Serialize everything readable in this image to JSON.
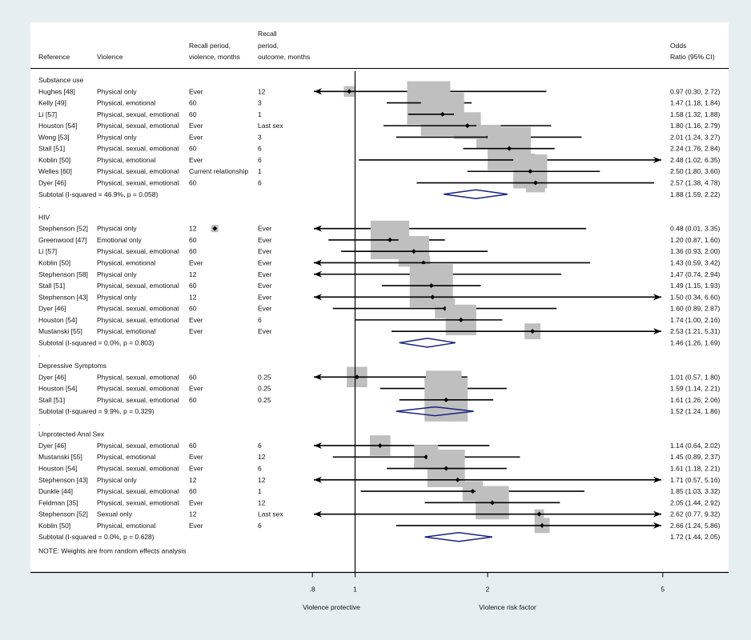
{
  "headers": {
    "reference": "Reference",
    "violence": "Violence",
    "recall_violence": [
      "Recall period,",
      "violence, months"
    ],
    "recall_outcome": [
      "Recall",
      "period,",
      "outcome, months"
    ],
    "odds": [
      "Odds",
      "Ratio (95% CI)"
    ]
  },
  "note": "NOTE: Weights are from random effects analysis",
  "x_axis": {
    "ticks": [
      ".8",
      "1",
      "2",
      "5"
    ]
  },
  "axis_labels": {
    "left": "Violence protective",
    "right": "Violence risk factor"
  },
  "chart_data": {
    "type": "forest",
    "x_scale": "log",
    "xlim": [
      0.8,
      5
    ],
    "reference_line": 1,
    "groups": [
      {
        "name": "Substance use",
        "studies": [
          {
            "ref": "Hughes [48]",
            "violence": "Physical only",
            "recall_violence": "Ever",
            "recall_outcome": "12",
            "or": 0.97,
            "lo": 0.3,
            "hi": 2.72,
            "ci_text": "0.97 (0.30, 2.72)"
          },
          {
            "ref": "Kelly [49]",
            "violence": "Physical, emotional",
            "recall_violence": "60",
            "recall_outcome": "3",
            "or": 1.47,
            "lo": 1.18,
            "hi": 1.84,
            "ci_text": "1.47 (1.18, 1.84)"
          },
          {
            "ref": "Li [57]",
            "violence": "Physical, sexual, emotional",
            "recall_violence": "60",
            "recall_outcome": "1",
            "or": 1.58,
            "lo": 1.32,
            "hi": 1.88,
            "ci_text": "1.58 (1.32, 1.88)"
          },
          {
            "ref": "Houston [54]",
            "violence": "Physical, sexual, emotional",
            "recall_violence": "Ever",
            "recall_outcome": "Last sex",
            "or": 1.8,
            "lo": 1.16,
            "hi": 2.79,
            "ci_text": "1.80 (1.16, 2.79)"
          },
          {
            "ref": "Wong [53]",
            "violence": "Physical only",
            "recall_violence": "Ever",
            "recall_outcome": "3",
            "or": 2.01,
            "lo": 1.24,
            "hi": 3.27,
            "ci_text": "2.01 (1.24, 3.27)"
          },
          {
            "ref": "Stall [51]",
            "violence": "Physical, sexual, emotional",
            "recall_violence": "60",
            "recall_outcome": "6",
            "or": 2.24,
            "lo": 1.76,
            "hi": 2.84,
            "ci_text": "2.24 (1.76, 2.84)"
          },
          {
            "ref": "Koblin [50]",
            "violence": "Physical, emotional",
            "recall_violence": "Ever",
            "recall_outcome": "6",
            "or": 2.48,
            "lo": 1.02,
            "hi": 6.35,
            "ci_text": "2.48 (1.02, 6.35)"
          },
          {
            "ref": "Welles [60]",
            "violence": "Physical, sexual, emotional",
            "recall_violence": "Current relationship",
            "recall_outcome": "1",
            "or": 2.5,
            "lo": 1.8,
            "hi": 3.6,
            "ci_text": "2.50 (1.80, 3.60)"
          },
          {
            "ref": "Dyer [46]",
            "violence": "Physical, sexual, emotional",
            "recall_violence": "60",
            "recall_outcome": "6",
            "or": 2.57,
            "lo": 1.38,
            "hi": 4.78,
            "ci_text": "2.57 (1.38, 4.78)"
          }
        ],
        "subtotal": {
          "label": "Subtotal  (I-squared = 46.9%, p = 0.058)",
          "or": 1.88,
          "lo": 1.59,
          "hi": 2.22,
          "ci_text": "1.88 (1.59, 2.22)"
        }
      },
      {
        "name": "HIV",
        "studies": [
          {
            "ref": "Stephenson [52]",
            "violence": "Physical only",
            "recall_violence": "12",
            "recall_outcome": "Ever",
            "or": 0.48,
            "lo": 0.01,
            "hi": 3.35,
            "ci_text": "0.48 (0.01, 3.35)"
          },
          {
            "ref": "Greenwood [47]",
            "violence": "Emotional only",
            "recall_violence": "60",
            "recall_outcome": "Ever",
            "or": 1.2,
            "lo": 0.87,
            "hi": 1.6,
            "ci_text": "1.20 (0.87, 1.60)"
          },
          {
            "ref": "Li [57]",
            "violence": "Physical, sexual, emotional",
            "recall_violence": "60",
            "recall_outcome": "Ever",
            "or": 1.36,
            "lo": 0.93,
            "hi": 2.0,
            "ci_text": "1.36 (0.93, 2.00)"
          },
          {
            "ref": "Koblin [50]",
            "violence": "Physical, emotional",
            "recall_violence": "Ever",
            "recall_outcome": "Ever",
            "or": 1.43,
            "lo": 0.59,
            "hi": 3.42,
            "ci_text": "1.43 (0.59, 3.42)"
          },
          {
            "ref": "Stephenson [58]",
            "violence": "Physical only",
            "recall_violence": "12",
            "recall_outcome": "Ever",
            "or": 1.47,
            "lo": 0.74,
            "hi": 2.94,
            "ci_text": "1.47 (0.74, 2.94)"
          },
          {
            "ref": "Stall [51]",
            "violence": "Physical, sexual, emotional",
            "recall_violence": "60",
            "recall_outcome": "Ever",
            "or": 1.49,
            "lo": 1.15,
            "hi": 1.93,
            "ci_text": "1.49 (1.15, 1.93)"
          },
          {
            "ref": "Stephenson [43]",
            "violence": "Physical only",
            "recall_violence": "12",
            "recall_outcome": "Ever",
            "or": 1.5,
            "lo": 0.34,
            "hi": 6.6,
            "ci_text": "1.50 (0.34, 6.60)"
          },
          {
            "ref": "Dyer [46]",
            "violence": "Physical, sexual, emotional",
            "recall_violence": "60",
            "recall_outcome": "Ever",
            "or": 1.6,
            "lo": 0.89,
            "hi": 2.87,
            "ci_text": "1.60 (0.89, 2.87)"
          },
          {
            "ref": "Houston [54]",
            "violence": "Physical, sexual, emotional",
            "recall_violence": "Ever",
            "recall_outcome": "6",
            "or": 1.74,
            "lo": 1.0,
            "hi": 2.16,
            "ci_text": "1.74 (1.00, 2.16)"
          },
          {
            "ref": "Mustanski [55]",
            "violence": "Physical, emotional",
            "recall_violence": "Ever",
            "recall_outcome": "Ever",
            "or": 2.53,
            "lo": 1.21,
            "hi": 5.31,
            "ci_text": "2.53 (1.21, 5.31)"
          }
        ],
        "subtotal": {
          "label": "Subtotal  (I-squared = 0.0%, p = 0.803)",
          "or": 1.46,
          "lo": 1.26,
          "hi": 1.69,
          "ci_text": "1.46 (1.26, 1.69)"
        }
      },
      {
        "name": "Depressive Symptoms",
        "studies": [
          {
            "ref": "Dyer [46]",
            "violence": "Physical, sexual, emotional",
            "recall_violence": "60",
            "recall_outcome": "0.25",
            "or": 1.01,
            "lo": 0.57,
            "hi": 1.8,
            "ci_text": "1.01 (0.57, 1.80)"
          },
          {
            "ref": "Houston [54]",
            "violence": "Physical, sexual, emotional",
            "recall_violence": "Ever",
            "recall_outcome": "0.25",
            "or": 1.59,
            "lo": 1.14,
            "hi": 2.21,
            "ci_text": "1.59 (1.14, 2.21)"
          },
          {
            "ref": "Stall [51]",
            "violence": "Physical, sexual, emotional",
            "recall_violence": "60",
            "recall_outcome": "0.25",
            "or": 1.61,
            "lo": 1.26,
            "hi": 2.06,
            "ci_text": "1.61 (1.26, 2.06)"
          }
        ],
        "subtotal": {
          "label": "Subtotal  (I-squared = 9.9%, p = 0.329)",
          "or": 1.52,
          "lo": 1.24,
          "hi": 1.86,
          "ci_text": "1.52 (1.24, 1.86)"
        }
      },
      {
        "name": "Unprotected Anal Sex",
        "studies": [
          {
            "ref": "Dyer [46]",
            "violence": "Physical, sexual, emotional",
            "recall_violence": "60",
            "recall_outcome": "6",
            "or": 1.14,
            "lo": 0.64,
            "hi": 2.02,
            "ci_text": "1.14 (0.64, 2.02)"
          },
          {
            "ref": "Mustanski [55]",
            "violence": "Physical, emotional",
            "recall_violence": "Ever",
            "recall_outcome": "12",
            "or": 1.45,
            "lo": 0.89,
            "hi": 2.37,
            "ci_text": "1.45 (0.89, 2.37)"
          },
          {
            "ref": "Houston [54]",
            "violence": "Physical, sexual, emotional",
            "recall_violence": "Ever",
            "recall_outcome": "6",
            "or": 1.61,
            "lo": 1.18,
            "hi": 2.21,
            "ci_text": "1.61 (1.18, 2.21)"
          },
          {
            "ref": "Stephenson [43]",
            "violence": "Physical only",
            "recall_violence": "12",
            "recall_outcome": "12",
            "or": 1.71,
            "lo": 0.57,
            "hi": 5.16,
            "ci_text": "1.71 (0.57, 5.16)"
          },
          {
            "ref": "Dunkle [44]",
            "violence": "Physical, sexual, emotional",
            "recall_violence": "60",
            "recall_outcome": "1",
            "or": 1.85,
            "lo": 1.03,
            "hi": 3.32,
            "ci_text": "1.85 (1.03, 3.32)"
          },
          {
            "ref": "Feldman [35]",
            "violence": "Physical, sexual, emotional",
            "recall_violence": "Ever",
            "recall_outcome": "12",
            "or": 2.05,
            "lo": 1.44,
            "hi": 2.92,
            "ci_text": "2.05 (1.44, 2.92)"
          },
          {
            "ref": "Stephenson [52]",
            "violence": "Sexual only",
            "recall_violence": "12",
            "recall_outcome": "Last sex",
            "or": 2.62,
            "lo": 0.77,
            "hi": 9.32,
            "ci_text": "2.62 (0.77, 9.32)"
          },
          {
            "ref": "Koblin [50]",
            "violence": "Physical, emotional",
            "recall_violence": "Ever",
            "recall_outcome": "6",
            "or": 2.66,
            "lo": 1.24,
            "hi": 5.86,
            "ci_text": "2.66 (1.24, 5.86)"
          }
        ],
        "subtotal": {
          "label": "Subtotal  (I-squared = 0.0%, p = 0.628)",
          "or": 1.72,
          "lo": 1.44,
          "hi": 2.05,
          "ci_text": "1.72 (1.44, 2.05)"
        }
      }
    ]
  }
}
